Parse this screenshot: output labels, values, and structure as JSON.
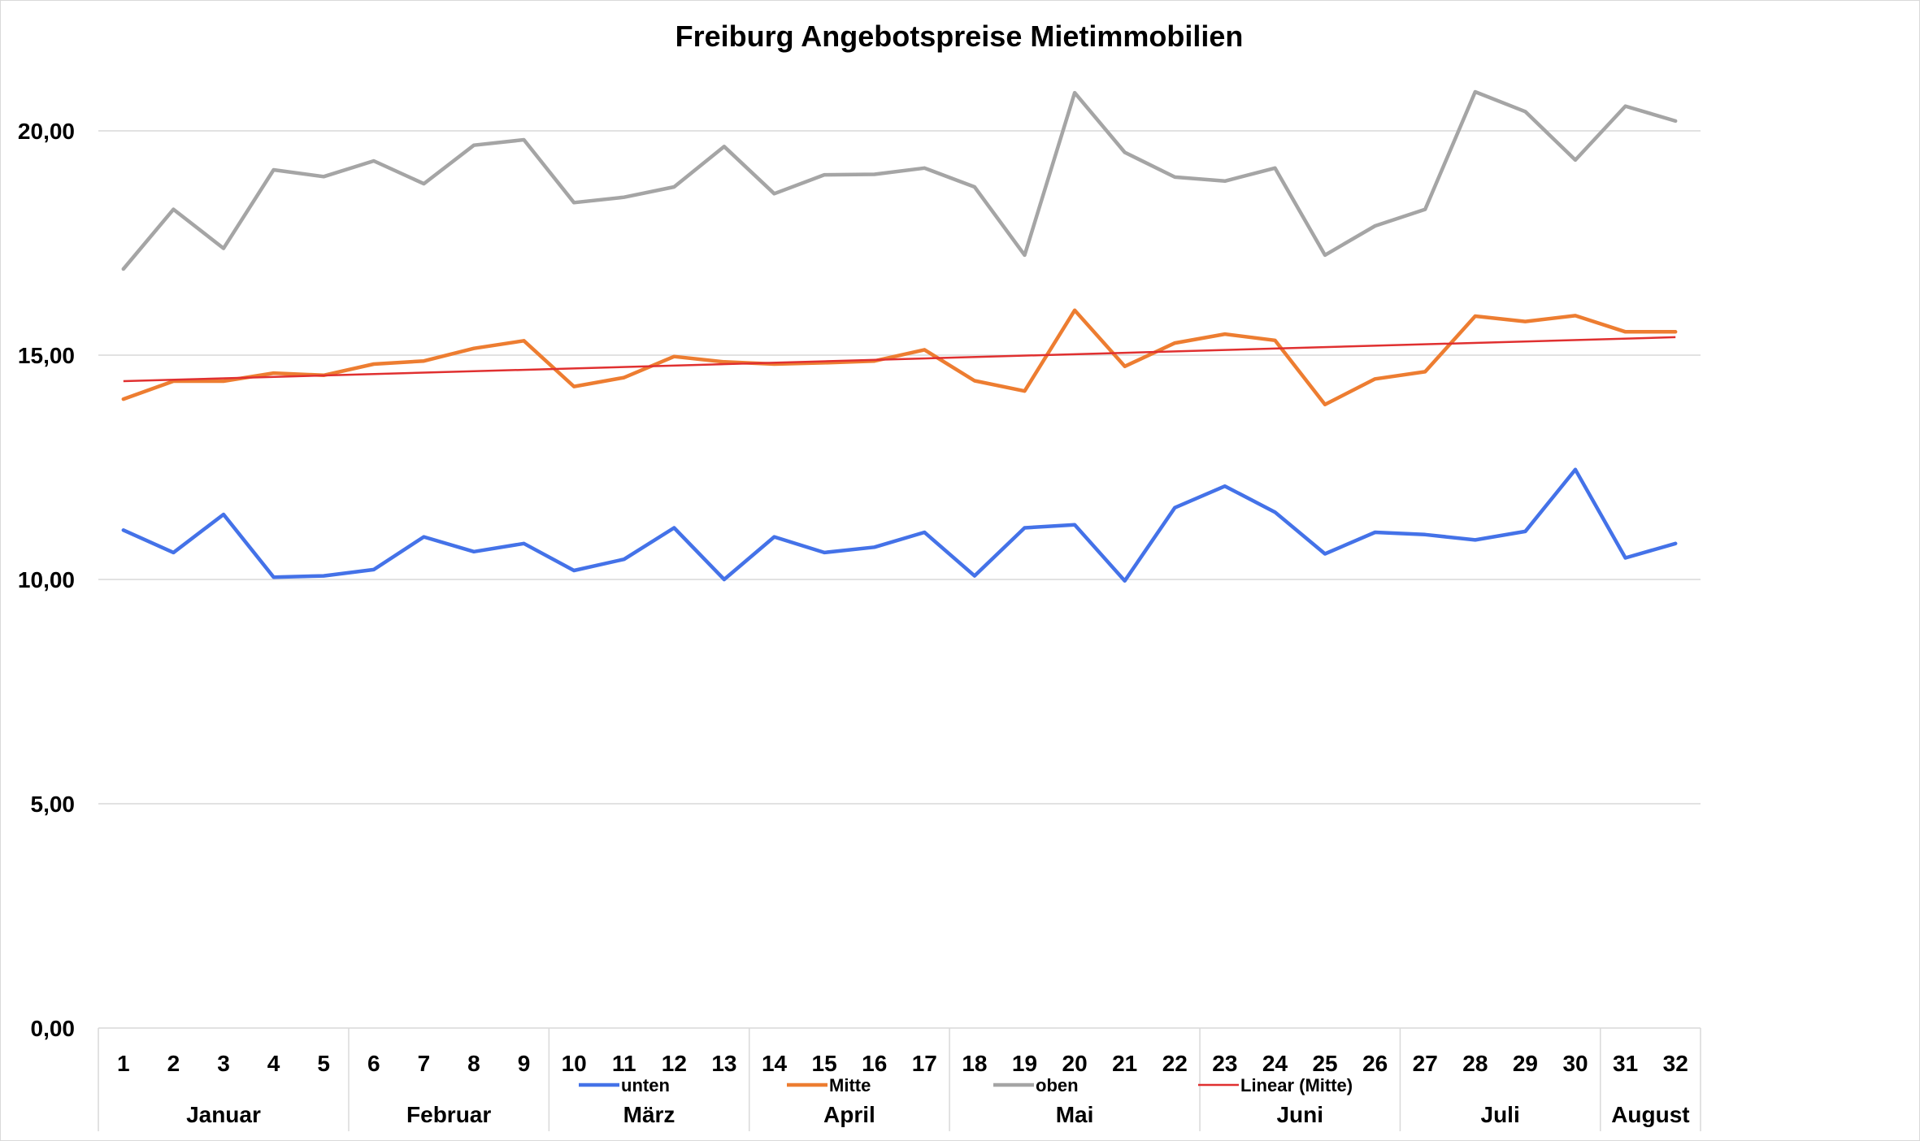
{
  "chart_data": {
    "type": "line",
    "title": "Freiburg Angebotspreise Mietimmobilien",
    "xlabel": "",
    "ylabel": "",
    "ylim": [
      0,
      20
    ],
    "y_ticks": [
      "0,00",
      "5,00",
      "10,00",
      "15,00",
      "20,00"
    ],
    "grid": true,
    "legend_position": "bottom",
    "categories": [
      "1",
      "2",
      "3",
      "4",
      "5",
      "6",
      "7",
      "8",
      "9",
      "10",
      "11",
      "12",
      "13",
      "14",
      "15",
      "16",
      "17",
      "18",
      "19",
      "20",
      "21",
      "22",
      "23",
      "24",
      "25",
      "26",
      "27",
      "28",
      "29",
      "30",
      "31",
      "32"
    ],
    "months": [
      {
        "label": "Januar",
        "start": 1,
        "end": 5
      },
      {
        "label": "Februar",
        "start": 6,
        "end": 9
      },
      {
        "label": "März",
        "start": 10,
        "end": 13
      },
      {
        "label": "April",
        "start": 14,
        "end": 17
      },
      {
        "label": "Mai",
        "start": 18,
        "end": 22
      },
      {
        "label": "Juni",
        "start": 23,
        "end": 26
      },
      {
        "label": "Juli",
        "start": 27,
        "end": 30
      },
      {
        "label": "August",
        "start": 31,
        "end": 32
      }
    ],
    "series": [
      {
        "name": "unten",
        "color": "#4472e8",
        "values": [
          11.1,
          10.6,
          11.45,
          10.05,
          10.08,
          10.22,
          10.95,
          10.62,
          10.8,
          10.2,
          10.45,
          11.15,
          10.0,
          10.95,
          10.6,
          10.72,
          11.05,
          10.08,
          11.15,
          11.22,
          9.97,
          11.6,
          12.08,
          11.5,
          10.57,
          11.05,
          11.0,
          10.88,
          11.07,
          12.45,
          10.48,
          10.8
        ]
      },
      {
        "name": "Mitte",
        "color": "#ed7d31",
        "values": [
          14.02,
          14.42,
          14.42,
          14.6,
          14.55,
          14.8,
          14.87,
          15.15,
          15.32,
          14.3,
          14.5,
          14.97,
          14.85,
          14.8,
          14.83,
          14.87,
          15.12,
          14.43,
          14.2,
          16.0,
          14.75,
          15.27,
          15.47,
          15.33,
          13.9,
          14.47,
          14.63,
          15.87,
          15.75,
          15.88,
          15.52,
          15.52
        ]
      },
      {
        "name": "oben",
        "color": "#a5a5a5",
        "values": [
          16.92,
          18.25,
          17.38,
          19.13,
          18.98,
          19.33,
          18.82,
          19.68,
          19.8,
          18.4,
          18.52,
          18.75,
          19.65,
          18.6,
          19.02,
          19.03,
          19.17,
          18.75,
          17.23,
          20.85,
          19.52,
          18.97,
          18.88,
          19.17,
          17.23,
          17.88,
          18.25,
          20.87,
          20.43,
          19.35,
          20.55,
          20.22
        ]
      }
    ],
    "trendline": {
      "name": "Linear (Mitte)",
      "color": "#e03030",
      "start": 14.42,
      "end": 15.4
    }
  }
}
